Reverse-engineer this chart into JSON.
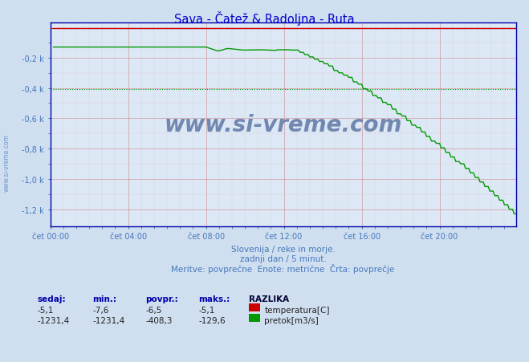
{
  "title": "Sava - Čatež & Radoljna - Ruta",
  "title_color": "#0000cc",
  "bg_color": "#d0dff0",
  "plot_bg_color": "#dce8f5",
  "grid_color_major": "#cc6666",
  "grid_color_minor": "#ddaaaa",
  "xlabel_color": "#4477bb",
  "ylabel_color": "#4477bb",
  "x_tick_labels": [
    "čet 00:00",
    "čet 04:00",
    "čet 08:00",
    "čet 12:00",
    "čet 16:00",
    "čet 20:00"
  ],
  "x_tick_positions": [
    0,
    48,
    96,
    144,
    192,
    240
  ],
  "y_tick_labels": [
    "-0,2 k",
    "-0,4 k",
    "-0,6 k",
    "-0,8 k",
    "-1,0 k",
    "-1,2 k"
  ],
  "y_tick_values": [
    -200,
    -400,
    -600,
    -800,
    -1000,
    -1200
  ],
  "ylim": [
    -1310,
    30
  ],
  "xlim": [
    0,
    287
  ],
  "n_points": 288,
  "temp_avg": -6.5,
  "flow_avg": -408.3,
  "red_line_color": "#cc0000",
  "green_line_color": "#009900",
  "avg_red_color": "#cc0000",
  "avg_green_color": "#009900",
  "watermark_text": "www.si-vreme.com",
  "watermark_color": "#1a3a7a",
  "footer_line1": "Slovenija / reke in morje.",
  "footer_line2": "zadnji dan / 5 minut.",
  "footer_line3": "Meritve: povprečne  Enote: metrične  Črta: povprečje",
  "footer_color": "#4477bb",
  "legend_title": "RAZLIKA",
  "legend_color": "#000088",
  "legend_temp_label": "temperatura[C]",
  "legend_flow_label": "pretok[m3/s]",
  "sidebar_text": "www.si-vreme.com",
  "sidebar_color": "#4477bb",
  "lbl_sedaj": "sedaj:",
  "lbl_min": "min.:",
  "lbl_povpr": "povpr.:",
  "lbl_maks": "maks.:",
  "temp_sedaj": "-5,1",
  "temp_min": "-7,6",
  "temp_povpr": "-6,5",
  "temp_maks": "-5,1",
  "flow_sedaj": "-1231,4",
  "flow_min": "-1231,4",
  "flow_povpr": "-408,3",
  "flow_maks": "-129,6"
}
